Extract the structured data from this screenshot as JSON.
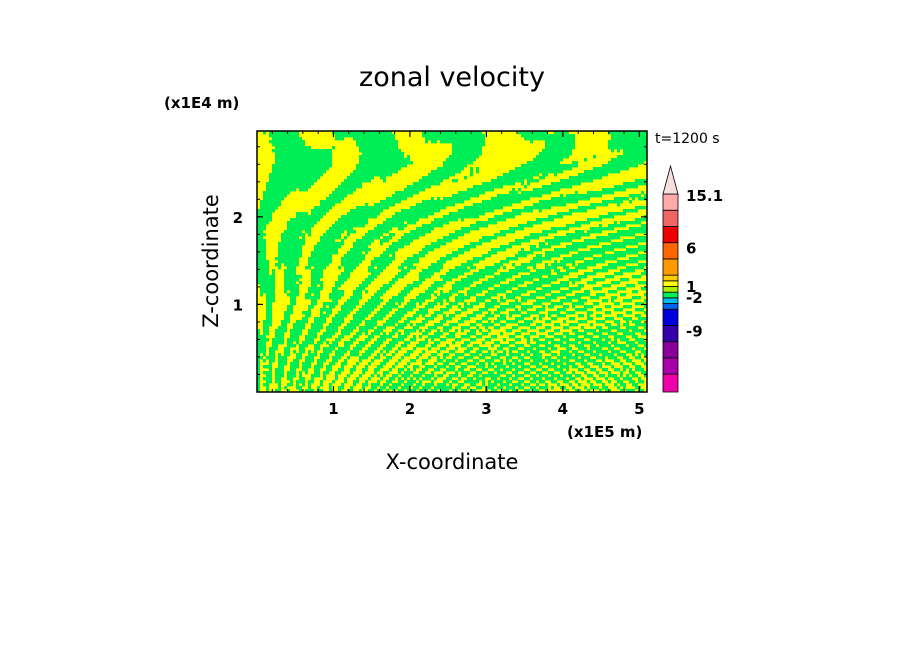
{
  "chart_data": {
    "type": "heatmap",
    "title": "zonal velocity",
    "xlabel": "X-coordinate",
    "ylabel": "Z-coordinate",
    "x_scale_label": "(x1E5 m)",
    "y_scale_label": "(x1E4 m)",
    "time_label": "t=1200 s",
    "xlim": [
      0.0,
      5.1
    ],
    "ylim": [
      0.0,
      2.98
    ],
    "x_ticks": [
      1,
      2,
      3,
      4,
      5
    ],
    "x_tick_labels": [
      "1",
      "2",
      "3",
      "4",
      "5"
    ],
    "y_ticks": [
      1,
      2
    ],
    "y_tick_labels": [
      "1",
      "2"
    ],
    "field_colors": {
      "positive": "#ffff00",
      "negative": "#00ee55"
    },
    "colorbar": {
      "levels": [
        {
          "color": "#ee00aa"
        },
        {
          "color": "#aa00aa"
        },
        {
          "color": "#880099"
        },
        {
          "color": "#3300aa"
        },
        {
          "color": "#0000dd"
        },
        {
          "color": "#0066ee"
        },
        {
          "color": "#00bbee"
        },
        {
          "color": "#00ee55"
        },
        {
          "color": "#aaee00"
        },
        {
          "color": "#ffff00"
        },
        {
          "color": "#ffcc00"
        },
        {
          "color": "#ff9900"
        },
        {
          "color": "#ff6600"
        },
        {
          "color": "#ee0000"
        },
        {
          "color": "#ee6666"
        },
        {
          "color": "#ffaaaa"
        }
      ],
      "labels": [
        "15.1",
        "6",
        "1",
        "-2",
        "-9"
      ],
      "extend_color": "#f4dede"
    }
  }
}
